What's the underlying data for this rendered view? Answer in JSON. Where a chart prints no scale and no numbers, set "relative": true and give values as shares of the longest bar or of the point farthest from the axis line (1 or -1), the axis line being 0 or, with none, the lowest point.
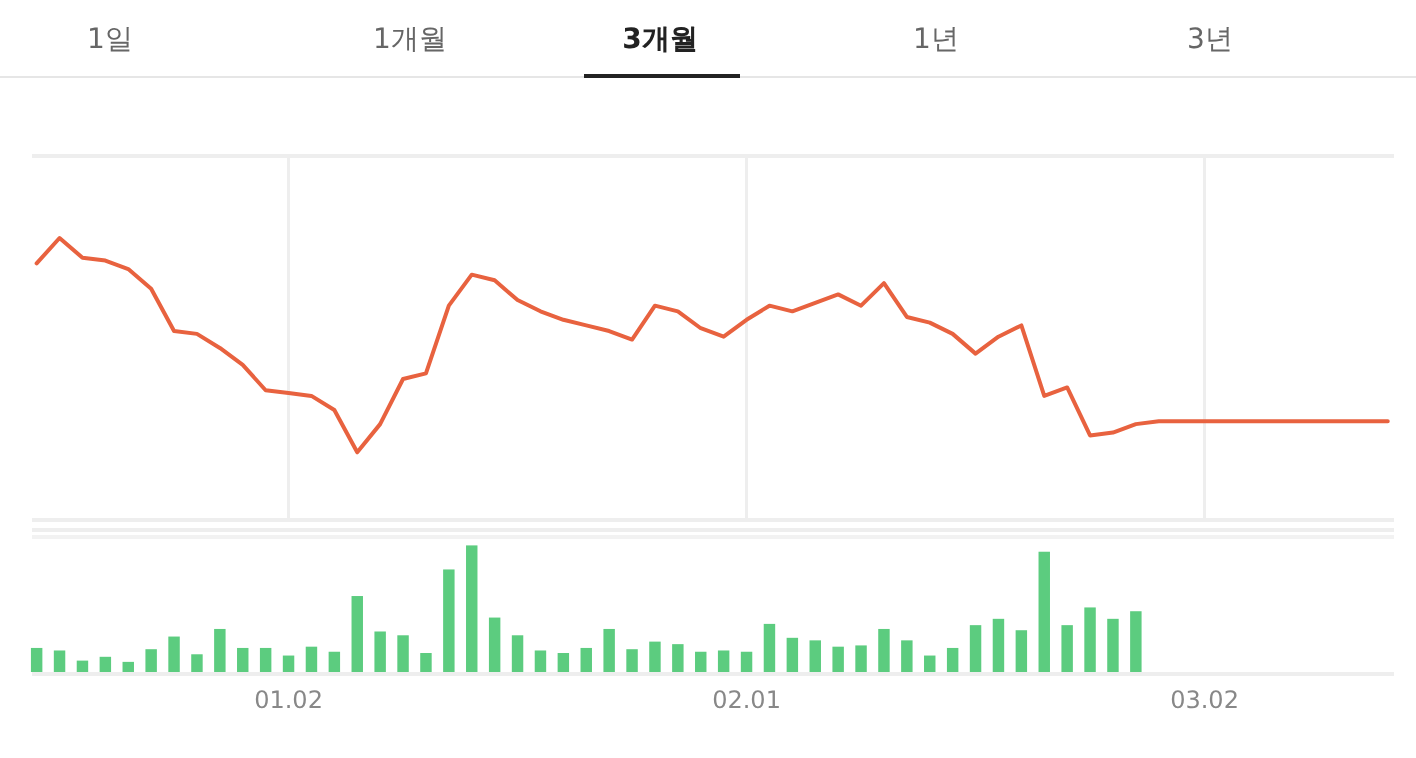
{
  "chart_data": [
    {
      "type": "other",
      "annotations": [
        "1일",
        "1개월",
        "3개월",
        "1년",
        "3년"
      ]
    },
    {
      "type": "line",
      "relative": true,
      "tick_labels": false,
      "grid": "x",
      "categories": [
        null,
        null,
        null,
        null,
        null,
        null,
        null,
        null,
        null,
        null,
        null,
        "01.02",
        null,
        null,
        null,
        null,
        null,
        null,
        null,
        null,
        null,
        null,
        null,
        null,
        null,
        null,
        null,
        null,
        null,
        null,
        null,
        "02.01",
        null,
        null,
        null,
        null,
        null,
        null,
        null,
        null,
        null,
        null,
        null,
        null,
        null,
        null,
        null,
        null,
        null,
        null,
        null,
        "03.02",
        null,
        null,
        null,
        null,
        null,
        null,
        null,
        null
      ],
      "series": [
        {
          "color": "#e8623f",
          "values": [
            0.91,
            1.0,
            0.93,
            0.92,
            0.89,
            0.82,
            0.67,
            0.66,
            0.61,
            0.55,
            0.46,
            0.45,
            0.44,
            0.39,
            0.24,
            0.34,
            0.5,
            0.52,
            0.76,
            0.87,
            0.85,
            0.78,
            0.74,
            0.71,
            0.69,
            0.67,
            0.64,
            0.76,
            0.74,
            0.68,
            0.65,
            0.71,
            0.76,
            0.74,
            0.77,
            0.8,
            0.76,
            0.84,
            0.72,
            0.7,
            0.66,
            0.59,
            0.65,
            0.69,
            0.44,
            0.47,
            0.3,
            0.31,
            0.34,
            0.35,
            0.35,
            0.35,
            0.35,
            0.35,
            0.35,
            0.35,
            0.35,
            0.35,
            0.35,
            0.35
          ]
        }
      ]
    },
    {
      "type": "bar",
      "relative": true,
      "color": "#5ccc7f",
      "categories": [
        null,
        null,
        null,
        null,
        null,
        null,
        null,
        null,
        null,
        null,
        null,
        "01.02",
        null,
        null,
        null,
        null,
        null,
        null,
        null,
        null,
        null,
        null,
        null,
        null,
        null,
        null,
        null,
        null,
        null,
        null,
        null,
        "02.01",
        null,
        null,
        null,
        null,
        null,
        null,
        null,
        null,
        null,
        null,
        null,
        null,
        null,
        null,
        null,
        null,
        null,
        null,
        null,
        "03.02",
        null,
        null,
        null,
        null,
        null,
        null,
        null,
        null
      ],
      "values": [
        0.19,
        0.17,
        0.09,
        0.12,
        0.08,
        0.18,
        0.28,
        0.14,
        0.34,
        0.19,
        0.19,
        0.13,
        0.2,
        0.16,
        0.6,
        0.32,
        0.29,
        0.15,
        0.81,
        1.0,
        0.43,
        0.29,
        0.17,
        0.15,
        0.19,
        0.34,
        0.18,
        0.24,
        0.22,
        0.16,
        0.17,
        0.16,
        0.38,
        0.27,
        0.25,
        0.2,
        0.21,
        0.34,
        0.25,
        0.13,
        0.19,
        0.37,
        0.42,
        0.33,
        0.95,
        0.37,
        0.51,
        0.42,
        0.48,
        null,
        null,
        null,
        null,
        null,
        null,
        null,
        null,
        null,
        null,
        null
      ]
    }
  ]
}
